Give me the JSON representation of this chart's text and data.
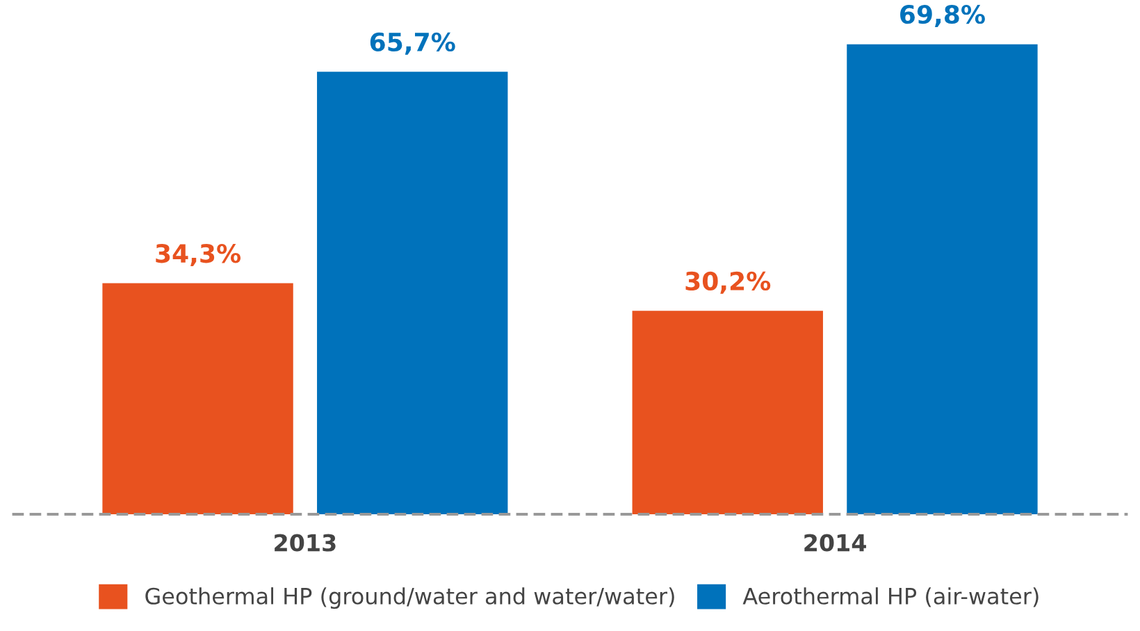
{
  "chart_data": {
    "type": "bar",
    "categories": [
      "2013",
      "2014"
    ],
    "series": [
      {
        "name": "Geothermal HP (ground/water and water/water)",
        "color": "#e8521f",
        "values": [
          34.3,
          30.2
        ],
        "value_labels": [
          "34,3%",
          "30,2%"
        ]
      },
      {
        "name": "Aerothermal HP (air-water)",
        "color": "#0072bb",
        "values": [
          65.7,
          69.8
        ],
        "value_labels": [
          "65,7%",
          "69,8%"
        ]
      }
    ],
    "legend": "bottom",
    "grid": false
  }
}
